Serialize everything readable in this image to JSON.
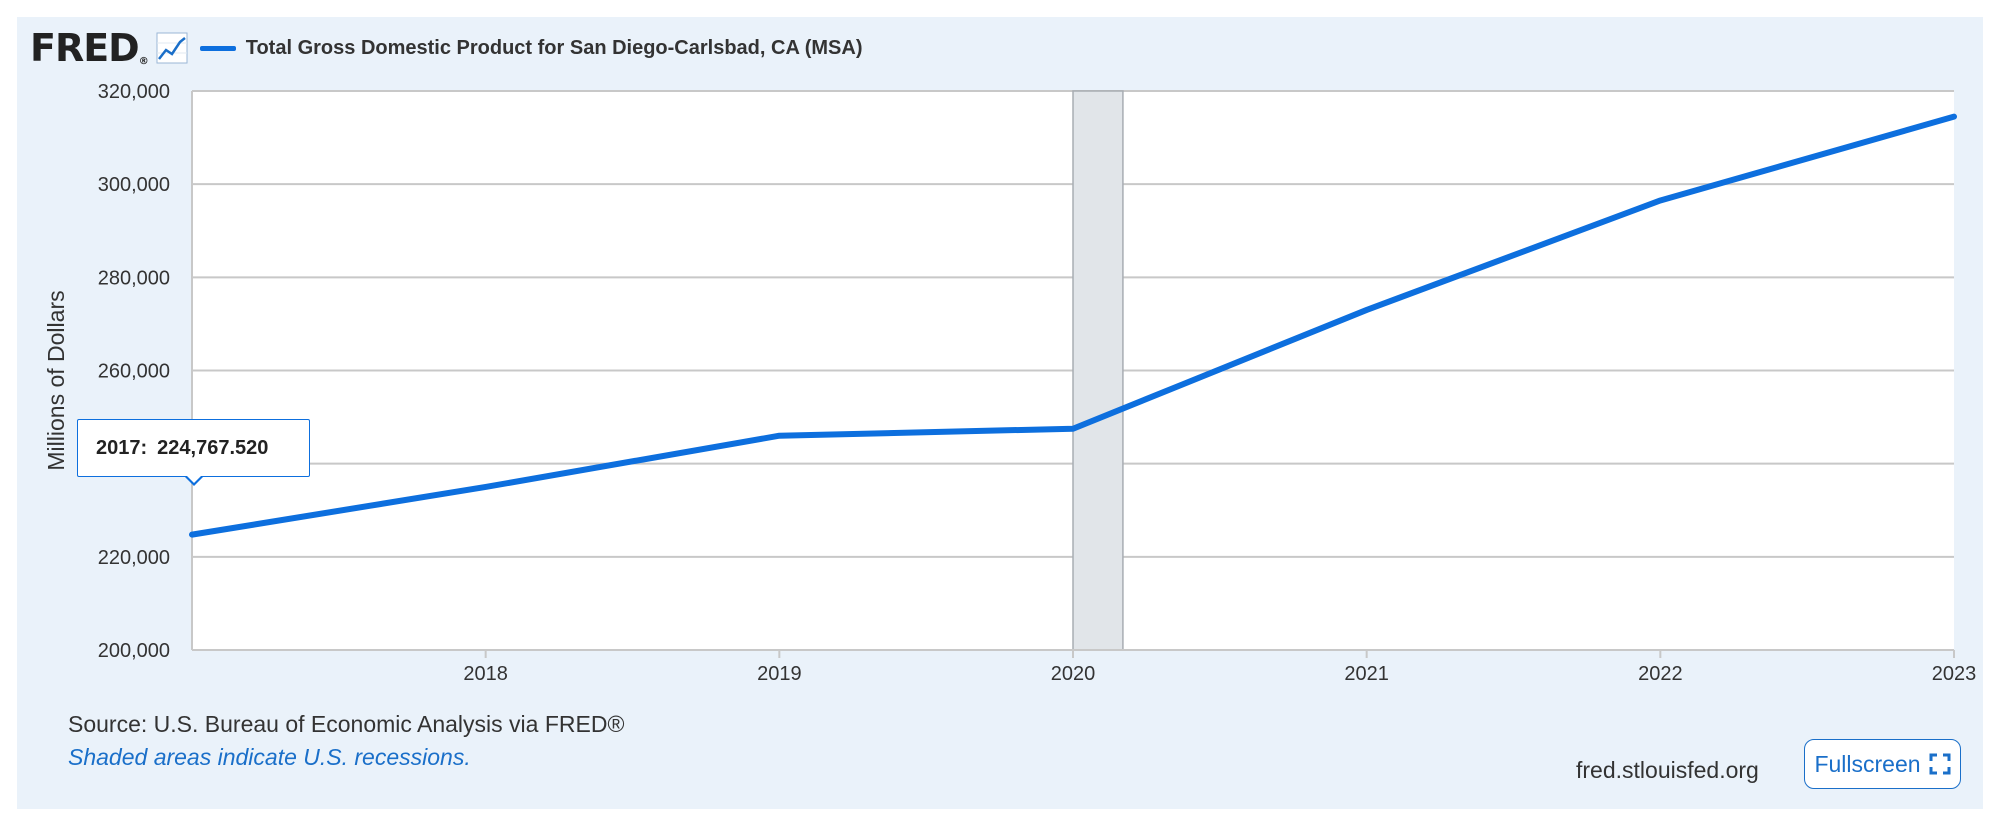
{
  "header": {
    "logo_text": "FRED",
    "logo_mark": "®",
    "logo_icon": "trend-line-icon"
  },
  "colors": {
    "series": "#0d6fde",
    "background": "#eaf2fa",
    "recession": "#e1e5e9",
    "link": "#1a6fc9"
  },
  "tooltip": {
    "label": "2017:",
    "value": "224,767.520"
  },
  "footer": {
    "source": "Source: U.S. Bureau of Economic Analysis via FRED®",
    "recession_note": "Shaded areas indicate U.S. recessions.",
    "site": "fred.stlouisfed.org",
    "fullscreen_label": "Fullscreen",
    "fullscreen_icon": "expand-icon"
  },
  "chart_data": {
    "type": "line",
    "title": "",
    "xlabel": "",
    "ylabel": "Millions of Dollars",
    "x": [
      2017,
      2018,
      2019,
      2020,
      2021,
      2022,
      2023
    ],
    "xlim": [
      2017,
      2023
    ],
    "ylim": [
      200000,
      320000
    ],
    "x_ticks": [
      "2018",
      "2019",
      "2020",
      "2021",
      "2022",
      "2023"
    ],
    "y_ticks": [
      "200,000",
      "220,000",
      "240,000",
      "260,000",
      "280,000",
      "300,000",
      "320,000"
    ],
    "y_tick_values": [
      200000,
      220000,
      240000,
      260000,
      280000,
      300000,
      320000
    ],
    "grid": true,
    "legend_position": "top-left",
    "series": [
      {
        "name": "Total Gross Domestic Product for San Diego-Carlsbad, CA (MSA)",
        "values": [
          224767.52,
          235000,
          246000,
          247500,
          273000,
          296500,
          314500
        ]
      }
    ],
    "recessions": [
      {
        "start": 2020.0,
        "end": 2020.17
      }
    ]
  }
}
